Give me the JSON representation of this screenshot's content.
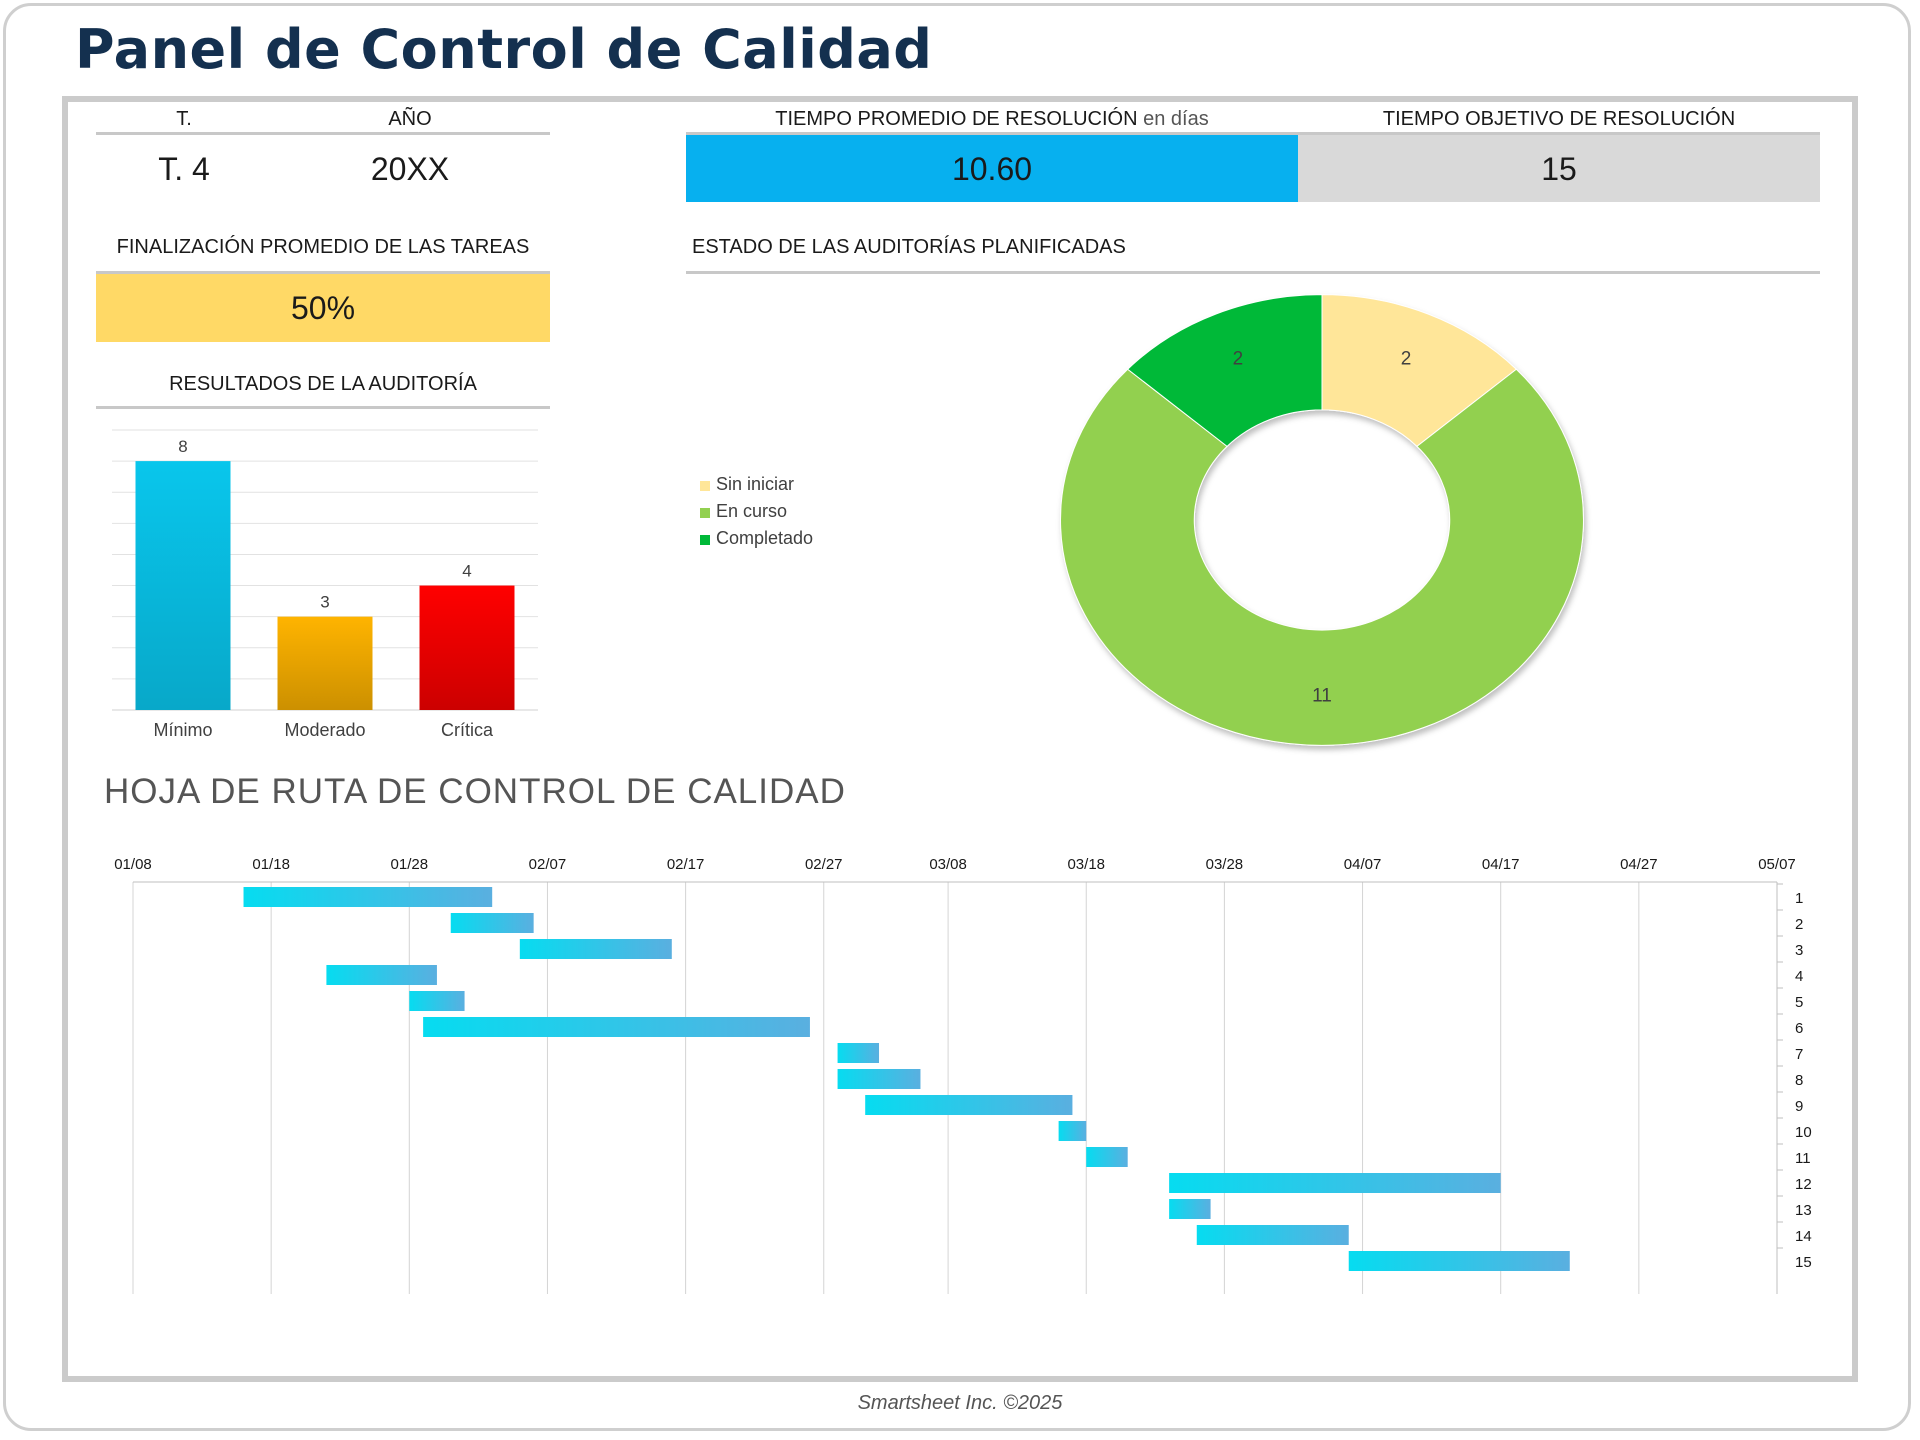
{
  "title": "Panel de Control de Calidad",
  "quarter": {
    "label": "T.",
    "value": "T. 4"
  },
  "year": {
    "label": "AÑO",
    "value": "20XX"
  },
  "avg_resolution": {
    "label": "TIEMPO PROMEDIO DE RESOLUCIÓN",
    "unit": "en días",
    "value": "10.60"
  },
  "target_resolution": {
    "label": "TIEMPO OBJETIVO DE RESOLUCIÓN",
    "value": "15"
  },
  "task_completion": {
    "label": "FINALIZACIÓN PROMEDIO DE LAS TAREAS",
    "value": "50%"
  },
  "audit_status_title": "ESTADO DE LAS AUDITORÍAS PLANIFICADAS",
  "audit_results_title": "RESULTADOS DE LA AUDITORÍA",
  "roadmap_title": "HOJA DE RUTA DE CONTROL DE CALIDAD",
  "footer": "Smartsheet Inc. ©2025",
  "colors": {
    "navy": "#14304f",
    "blue": "#07b0ef",
    "yellow": "#ffd966",
    "not_started": "#ffe699",
    "in_progress": "#92d050",
    "completed": "#00b939",
    "minimo": "#09c6ec",
    "moderado": "#ffb400",
    "critica": "#ff0000"
  },
  "chart_data": [
    {
      "type": "bar",
      "title": "RESULTADOS DE LA AUDITORÍA",
      "categories": [
        "Mínimo",
        "Moderado",
        "Crítica"
      ],
      "values": [
        8,
        3,
        4
      ],
      "ylim": [
        0,
        9
      ],
      "grid": true,
      "colors": [
        "#09c6ec",
        "#ffb400",
        "#ff0000"
      ]
    },
    {
      "type": "pie",
      "variant": "donut",
      "title": "ESTADO DE LAS AUDITORÍAS PLANIFICADAS",
      "categories": [
        "Sin iniciar",
        "En curso",
        "Completado"
      ],
      "values": [
        2,
        11,
        2
      ],
      "colors": [
        "#ffe699",
        "#92d050",
        "#00b939"
      ],
      "legend": "left"
    },
    {
      "type": "bar",
      "variant": "gantt",
      "title": "HOJA DE RUTA DE CONTROL DE CALIDAD",
      "x_ticks": [
        "01/08",
        "01/18",
        "01/28",
        "02/07",
        "02/17",
        "02/27",
        "03/08",
        "03/18",
        "03/28",
        "04/07",
        "04/17",
        "04/27",
        "05/07"
      ],
      "xlim": [
        "01/08",
        "05/07"
      ],
      "grid": true,
      "tasks": [
        {
          "id": "1",
          "start": "01/16",
          "end": "02/03"
        },
        {
          "id": "2",
          "start": "01/31",
          "end": "02/06"
        },
        {
          "id": "3",
          "start": "02/05",
          "end": "02/16"
        },
        {
          "id": "4",
          "start": "01/22",
          "end": "01/30"
        },
        {
          "id": "5",
          "start": "01/28",
          "end": "02/01"
        },
        {
          "id": "6",
          "start": "01/29",
          "end": "02/26"
        },
        {
          "id": "7",
          "start": "02/28",
          "end": "03/03"
        },
        {
          "id": "8",
          "start": "02/28",
          "end": "03/06"
        },
        {
          "id": "9",
          "start": "03/02",
          "end": "03/17"
        },
        {
          "id": "10",
          "start": "03/16",
          "end": "03/18"
        },
        {
          "id": "11",
          "start": "03/18",
          "end": "03/21"
        },
        {
          "id": "12",
          "start": "03/24",
          "end": "04/17"
        },
        {
          "id": "13",
          "start": "03/24",
          "end": "03/27"
        },
        {
          "id": "14",
          "start": "03/26",
          "end": "04/06"
        },
        {
          "id": "15",
          "start": "04/06",
          "end": "04/22"
        }
      ]
    }
  ]
}
